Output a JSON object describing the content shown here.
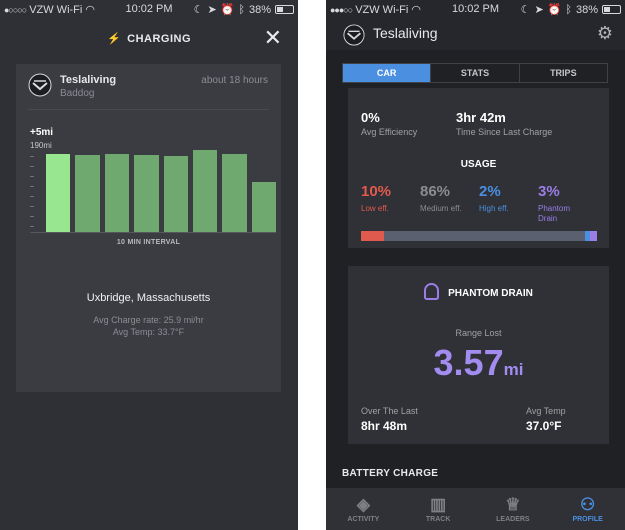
{
  "left": {
    "status": {
      "carrier": "VZW Wi-Fi",
      "time": "10:02 PM",
      "battery": "38%",
      "battery_level": 0.38
    },
    "header": {
      "title": "CHARGING"
    },
    "card": {
      "user": "Teslaliving",
      "subtitle": "Baddog",
      "when": "about 18 hours",
      "chart_top": "+5mi",
      "chart_max": "190mi",
      "interval_label": "10 MIN INTERVAL",
      "location": "Uxbridge, Massachusetts",
      "charge_rate": "Avg Charge rate: 25.9 mi/hr",
      "avg_temp": "Avg Temp: 33.7°F"
    },
    "colors": {
      "bar": "#6fa96f",
      "bar_highlight": "#98e690"
    }
  },
  "chart_data": {
    "type": "bar",
    "categories": [
      "",
      "",
      "",
      "",
      "",
      "",
      "",
      ""
    ],
    "values": [
      190,
      187,
      190,
      187,
      185,
      199,
      190,
      121
    ],
    "ylim": [
      0,
      200
    ],
    "title": "",
    "xlabel": "10 MIN INTERVAL",
    "ylabel": ""
  },
  "right": {
    "status": {
      "carrier": "VZW Wi-Fi",
      "time": "10:02 PM",
      "battery": "38%",
      "battery_level": 0.38
    },
    "header": {
      "title": "Teslaliving"
    },
    "tabs": [
      {
        "label": "CAR",
        "active": true
      },
      {
        "label": "STATS",
        "active": false
      },
      {
        "label": "TRIPS",
        "active": false
      }
    ],
    "stats": {
      "efficiency_value": "0%",
      "efficiency_label": "Avg Efficiency",
      "since_charge_value": "3hr 42m",
      "since_charge_label": "Time Since Last Charge"
    },
    "usage": {
      "title": "USAGE",
      "items": [
        {
          "value": "10%",
          "label": "Low eff.",
          "color": "#e05a4d",
          "pct": 10
        },
        {
          "value": "86%",
          "label": "Medium eff.",
          "color": "#5a6070",
          "pct": 86
        },
        {
          "value": "2%",
          "label": "High eff.",
          "color": "#4a8fe0",
          "pct": 2
        },
        {
          "value": "3%",
          "label": "Phantom Drain",
          "color": "#9b7de8",
          "pct": 3
        }
      ]
    },
    "phantom": {
      "title": "PHANTOM DRAIN",
      "range_label": "Range Lost",
      "range_value": "3.57",
      "range_unit": "mi",
      "over_label": "Over The Last",
      "over_value": "8hr 48m",
      "temp_label": "Avg Temp",
      "temp_value": "37.0°F"
    },
    "battery_section": "BATTERY CHARGE",
    "tabbar": [
      {
        "label": "ACTIVITY",
        "icon": "activity-icon"
      },
      {
        "label": "TRACK",
        "icon": "track-icon"
      },
      {
        "label": "LEADERS",
        "icon": "trophy-icon"
      },
      {
        "label": "PROFILE",
        "icon": "profile-icon",
        "active": true
      }
    ]
  }
}
